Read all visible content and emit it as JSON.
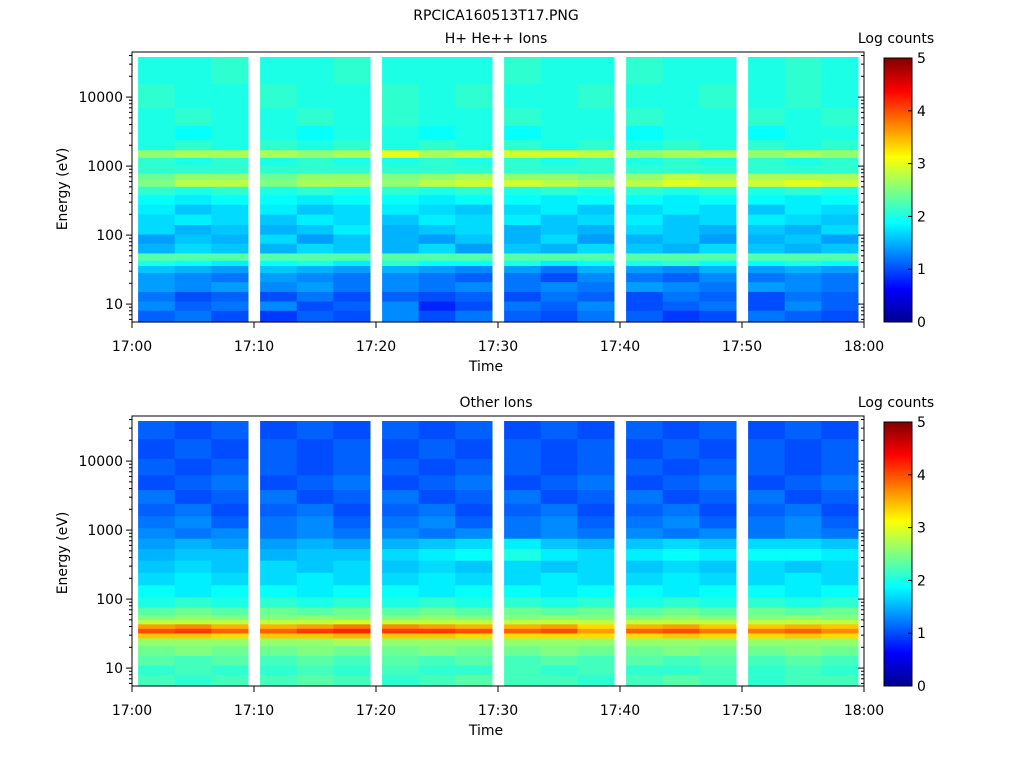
{
  "figure_title": "RPCICA160513T17.PNG",
  "colormap": [
    "#00008f",
    "#0000ff",
    "#0080ff",
    "#00ffff",
    "#80ff80",
    "#ffff00",
    "#ff8000",
    "#ff0000",
    "#800000"
  ],
  "chart_data": [
    {
      "type": "heatmap",
      "title": "H+ He++ Ions",
      "xlabel": "Time",
      "ylabel": "Energy (eV)",
      "x_ticks": [
        "17:00",
        "17:10",
        "17:20",
        "17:30",
        "17:40",
        "17:50",
        "18:00"
      ],
      "xlim": [
        "17:00",
        "18:00"
      ],
      "y_ticks": [
        10,
        100,
        1000,
        10000
      ],
      "y_tick_labels": [
        "10",
        "100",
        "1000",
        "10000"
      ],
      "ylim": [
        5.5,
        45000
      ],
      "y_scale": "log",
      "colorbar_label": "Log counts",
      "colorbar_ticks": [
        "0",
        "1",
        "2",
        "3",
        "4",
        "5"
      ],
      "colorbar_range": [
        0,
        5
      ],
      "time_columns": [
        "17:02",
        "17:05",
        "17:08",
        "17:12",
        "17:15",
        "17:18",
        "17:22",
        "17:25",
        "17:28",
        "17:32",
        "17:35",
        "17:38",
        "17:42",
        "17:45",
        "17:48",
        "17:52",
        "17:55",
        "17:58"
      ],
      "energy_bands_eV": [
        7,
        9.5,
        13,
        18,
        25,
        33,
        40,
        47,
        65,
        90,
        120,
        170,
        240,
        330,
        450,
        580,
        700,
        900,
        1200,
        1500,
        2000,
        3000,
        5000,
        10000,
        25000
      ],
      "log_counts_by_energy": [
        [
          1.1,
          1.2,
          1.0,
          0.9,
          1.1,
          1.0,
          1.3,
          1.0,
          1.2,
          1.1,
          1.0,
          1.2,
          1.1,
          0.9,
          1.0,
          1.2,
          1.1,
          1.0
        ],
        [
          1.3,
          1.1,
          1.2,
          1.3,
          1.0,
          1.1,
          1.3,
          0.8,
          1.0,
          1.2,
          1.1,
          1.3,
          1.0,
          1.1,
          1.2,
          1.0,
          1.3,
          1.1
        ],
        [
          1.2,
          1.0,
          1.1,
          1.0,
          1.2,
          1.0,
          1.1,
          1.0,
          1.1,
          1.0,
          1.2,
          1.1,
          1.0,
          1.2,
          1.1,
          1.0,
          1.2,
          1.1
        ],
        [
          1.4,
          1.3,
          1.4,
          1.3,
          1.4,
          1.2,
          1.3,
          1.2,
          1.3,
          1.2,
          1.3,
          1.2,
          1.4,
          1.3,
          1.2,
          1.4,
          1.3,
          1.2
        ],
        [
          1.4,
          1.3,
          1.2,
          1.4,
          1.3,
          1.2,
          1.3,
          1.2,
          1.1,
          1.2,
          1.0,
          1.3,
          1.2,
          1.1,
          1.3,
          1.2,
          1.3,
          1.2
        ],
        [
          1.6,
          1.5,
          1.4,
          1.6,
          1.5,
          1.4,
          1.5,
          1.4,
          1.3,
          1.4,
          1.2,
          1.5,
          1.4,
          1.3,
          1.5,
          1.4,
          1.5,
          1.4
        ],
        [
          2.0,
          1.9,
          1.8,
          1.9,
          2.0,
          1.8,
          2.1,
          1.9,
          1.9,
          2.0,
          1.8,
          1.9,
          2.0,
          2.1,
          1.9,
          1.9,
          2.0,
          1.9
        ],
        [
          2.3,
          2.3,
          2.3,
          2.3,
          2.3,
          2.3,
          2.3,
          2.3,
          2.3,
          2.3,
          2.3,
          2.3,
          2.3,
          2.3,
          2.3,
          2.3,
          2.3,
          2.3
        ],
        [
          1.5,
          1.7,
          1.6,
          1.5,
          1.7,
          1.6,
          1.5,
          1.7,
          1.4,
          1.6,
          1.5,
          1.7,
          1.6,
          1.5,
          1.7,
          1.6,
          1.5,
          1.6
        ],
        [
          1.4,
          1.6,
          1.5,
          1.7,
          1.4,
          1.6,
          1.5,
          1.4,
          1.6,
          1.5,
          1.7,
          1.4,
          1.5,
          1.6,
          1.4,
          1.5,
          1.6,
          1.4
        ],
        [
          1.7,
          1.5,
          1.6,
          1.5,
          1.6,
          1.8,
          1.5,
          1.6,
          1.7,
          1.5,
          1.6,
          1.5,
          1.7,
          1.6,
          1.5,
          1.6,
          1.5,
          1.7
        ],
        [
          1.7,
          1.8,
          1.7,
          1.6,
          1.8,
          1.7,
          1.6,
          1.8,
          1.7,
          1.8,
          1.6,
          1.7,
          1.8,
          1.6,
          1.7,
          1.8,
          1.7,
          1.6
        ],
        [
          1.8,
          1.6,
          1.7,
          1.8,
          1.6,
          1.7,
          1.8,
          1.7,
          1.6,
          1.7,
          1.8,
          1.6,
          1.7,
          1.8,
          1.7,
          1.6,
          1.8,
          1.7
        ],
        [
          1.9,
          1.8,
          1.9,
          1.9,
          1.8,
          1.9,
          1.9,
          1.8,
          1.9,
          1.9,
          1.8,
          1.9,
          1.9,
          1.8,
          1.9,
          1.9,
          1.8,
          1.9
        ],
        [
          2.1,
          2.0,
          2.1,
          2.0,
          2.1,
          2.0,
          2.1,
          2.0,
          2.1,
          2.0,
          2.1,
          2.0,
          2.1,
          2.0,
          2.1,
          2.0,
          2.1,
          2.0
        ],
        [
          2.5,
          2.8,
          2.8,
          2.5,
          2.7,
          2.7,
          2.6,
          2.8,
          2.9,
          2.9,
          2.8,
          2.7,
          2.8,
          3.0,
          2.9,
          2.9,
          3.0,
          2.9
        ],
        [
          2.4,
          2.6,
          2.6,
          2.4,
          2.6,
          2.6,
          2.5,
          2.6,
          2.7,
          2.6,
          2.6,
          2.5,
          2.6,
          2.8,
          2.7,
          2.7,
          2.7,
          2.7
        ],
        [
          2.1,
          2.1,
          2.1,
          2.1,
          2.1,
          2.1,
          2.1,
          2.1,
          2.1,
          2.1,
          2.1,
          2.1,
          2.1,
          2.1,
          2.1,
          2.1,
          2.1,
          2.1
        ],
        [
          2.1,
          2.0,
          2.1,
          2.0,
          2.1,
          2.0,
          2.0,
          2.1,
          2.0,
          2.1,
          2.0,
          2.1,
          2.0,
          2.1,
          2.0,
          2.1,
          2.0,
          2.1
        ],
        [
          2.6,
          2.7,
          2.7,
          2.7,
          2.6,
          2.7,
          3.0,
          2.7,
          2.8,
          2.9,
          2.9,
          2.8,
          2.6,
          2.7,
          2.7,
          2.6,
          2.7,
          2.6
        ],
        [
          2.0,
          2.1,
          2.0,
          2.1,
          2.0,
          2.1,
          2.0,
          2.1,
          2.0,
          2.1,
          2.0,
          2.1,
          2.0,
          2.1,
          2.0,
          2.1,
          2.0,
          2.1
        ],
        [
          2.0,
          1.9,
          2.0,
          2.0,
          1.9,
          2.0,
          2.0,
          1.9,
          2.0,
          1.9,
          2.0,
          2.0,
          1.9,
          2.0,
          2.0,
          1.9,
          2.0,
          2.0
        ],
        [
          2.0,
          2.1,
          2.0,
          2.0,
          2.1,
          2.0,
          2.1,
          2.0,
          2.0,
          2.1,
          2.0,
          2.0,
          2.1,
          2.0,
          2.0,
          2.1,
          2.0,
          2.1
        ],
        [
          2.1,
          2.0,
          2.0,
          2.1,
          2.0,
          2.0,
          2.1,
          2.0,
          2.1,
          2.0,
          2.0,
          2.1,
          2.0,
          2.0,
          2.1,
          2.0,
          2.1,
          2.0
        ],
        [
          2.0,
          2.0,
          2.1,
          2.0,
          2.0,
          2.1,
          2.0,
          2.0,
          2.0,
          2.1,
          2.0,
          2.0,
          2.1,
          2.0,
          2.0,
          2.0,
          2.1,
          2.0
        ]
      ]
    },
    {
      "type": "heatmap",
      "title": "Other Ions",
      "xlabel": "Time",
      "ylabel": "Energy (eV)",
      "x_ticks": [
        "17:00",
        "17:10",
        "17:20",
        "17:30",
        "17:40",
        "17:50",
        "18:00"
      ],
      "xlim": [
        "17:00",
        "18:00"
      ],
      "y_ticks": [
        10,
        100,
        1000,
        10000
      ],
      "y_tick_labels": [
        "10",
        "100",
        "1000",
        "10000"
      ],
      "ylim": [
        5.5,
        45000
      ],
      "y_scale": "log",
      "colorbar_label": "Log counts",
      "colorbar_ticks": [
        "0",
        "1",
        "2",
        "3",
        "4",
        "5"
      ],
      "colorbar_range": [
        0,
        5
      ],
      "time_columns": [
        "17:02",
        "17:05",
        "17:08",
        "17:12",
        "17:15",
        "17:18",
        "17:22",
        "17:25",
        "17:28",
        "17:32",
        "17:35",
        "17:38",
        "17:42",
        "17:45",
        "17:48",
        "17:52",
        "17:55",
        "17:58"
      ],
      "energy_bands_eV": [
        7,
        9.5,
        13,
        18,
        25,
        30,
        35,
        41,
        47,
        55,
        65,
        90,
        130,
        200,
        300,
        450,
        650,
        900,
        1300,
        2000,
        3000,
        5000,
        8000,
        15000,
        30000
      ],
      "log_counts_by_energy": [
        [
          2.2,
          2.1,
          2.2,
          2.2,
          2.3,
          2.2,
          2.1,
          2.2,
          2.3,
          2.2,
          2.2,
          2.1,
          2.2,
          2.3,
          2.2,
          2.1,
          2.2,
          2.2
        ],
        [
          2.1,
          2.2,
          2.1,
          2.1,
          2.2,
          2.1,
          2.2,
          2.1,
          2.1,
          2.2,
          2.1,
          2.2,
          2.1,
          2.1,
          2.2,
          2.1,
          2.2,
          2.1
        ],
        [
          2.3,
          2.2,
          2.3,
          2.2,
          2.3,
          2.2,
          2.3,
          2.2,
          2.3,
          2.2,
          2.3,
          2.2,
          2.3,
          2.2,
          2.3,
          2.2,
          2.3,
          2.2
        ],
        [
          2.4,
          2.5,
          2.4,
          2.4,
          2.5,
          2.4,
          2.4,
          2.5,
          2.4,
          2.4,
          2.5,
          2.4,
          2.4,
          2.5,
          2.4,
          2.4,
          2.5,
          2.4
        ],
        [
          2.6,
          2.6,
          2.6,
          2.6,
          2.6,
          2.7,
          2.6,
          2.6,
          2.6,
          2.6,
          2.6,
          2.6,
          2.6,
          2.6,
          2.6,
          2.6,
          2.6,
          2.6
        ],
        [
          3.4,
          3.4,
          3.3,
          3.4,
          3.4,
          3.5,
          3.4,
          3.4,
          3.3,
          3.3,
          3.3,
          3.3,
          3.3,
          3.4,
          3.3,
          3.3,
          3.4,
          3.3
        ],
        [
          4.0,
          4.1,
          3.9,
          3.9,
          4.1,
          4.2,
          4.1,
          4.1,
          4.0,
          3.9,
          4.0,
          3.6,
          3.9,
          4.0,
          3.8,
          3.8,
          3.9,
          3.7
        ],
        [
          3.6,
          3.7,
          3.5,
          3.5,
          3.6,
          3.8,
          3.7,
          3.6,
          3.5,
          3.5,
          3.6,
          3.3,
          3.5,
          3.6,
          3.4,
          3.4,
          3.5,
          3.4
        ],
        [
          2.8,
          2.8,
          2.8,
          2.8,
          2.8,
          2.9,
          2.8,
          2.8,
          2.8,
          2.8,
          2.8,
          2.8,
          2.8,
          2.8,
          2.8,
          2.8,
          2.8,
          2.8
        ],
        [
          2.5,
          2.6,
          2.5,
          2.5,
          2.6,
          2.5,
          2.5,
          2.6,
          2.5,
          2.5,
          2.6,
          2.5,
          2.5,
          2.6,
          2.5,
          2.5,
          2.6,
          2.5
        ],
        [
          2.3,
          2.4,
          2.3,
          2.4,
          2.3,
          2.4,
          2.3,
          2.4,
          2.3,
          2.4,
          2.3,
          2.4,
          2.3,
          2.4,
          2.3,
          2.4,
          2.3,
          2.4
        ],
        [
          2.0,
          2.1,
          2.0,
          2.1,
          2.0,
          2.1,
          2.0,
          2.1,
          2.0,
          2.1,
          2.0,
          2.1,
          2.0,
          2.1,
          2.0,
          2.1,
          2.0,
          2.1
        ],
        [
          1.9,
          1.8,
          1.9,
          1.9,
          1.8,
          1.9,
          1.9,
          1.8,
          1.9,
          1.9,
          1.8,
          1.9,
          1.9,
          1.8,
          1.9,
          1.9,
          1.8,
          1.9
        ],
        [
          1.7,
          1.8,
          1.7,
          1.7,
          1.8,
          1.7,
          1.7,
          1.8,
          1.7,
          1.7,
          1.8,
          1.7,
          1.7,
          1.8,
          1.7,
          1.7,
          1.8,
          1.7
        ],
        [
          1.6,
          1.7,
          1.6,
          1.7,
          1.6,
          1.7,
          1.6,
          1.7,
          1.6,
          1.7,
          1.6,
          1.7,
          1.6,
          1.7,
          1.6,
          1.7,
          1.6,
          1.7
        ],
        [
          1.5,
          1.6,
          1.6,
          1.5,
          1.6,
          1.6,
          1.7,
          1.8,
          1.9,
          2.0,
          1.8,
          1.7,
          1.8,
          1.9,
          1.8,
          1.9,
          1.9,
          1.8
        ],
        [
          1.4,
          1.5,
          1.4,
          1.4,
          1.5,
          1.4,
          1.5,
          1.6,
          1.7,
          1.8,
          1.6,
          1.5,
          1.6,
          1.7,
          1.6,
          1.7,
          1.7,
          1.6
        ],
        [
          1.3,
          1.2,
          1.3,
          1.2,
          1.3,
          1.2,
          1.3,
          1.2,
          1.3,
          1.2,
          1.3,
          1.2,
          1.3,
          1.2,
          1.3,
          1.2,
          1.3,
          1.2
        ],
        [
          1.2,
          1.3,
          1.1,
          1.2,
          1.3,
          1.1,
          1.2,
          1.3,
          1.1,
          1.2,
          1.3,
          1.1,
          1.2,
          1.3,
          1.1,
          1.2,
          1.3,
          1.1
        ],
        [
          1.1,
          1.2,
          1.0,
          1.1,
          1.2,
          1.0,
          1.1,
          1.2,
          1.0,
          1.1,
          1.2,
          1.0,
          1.1,
          1.2,
          1.0,
          1.1,
          1.2,
          1.0
        ],
        [
          1.2,
          1.0,
          1.1,
          1.2,
          1.0,
          1.1,
          1.2,
          1.0,
          1.1,
          1.2,
          1.0,
          1.1,
          1.2,
          1.0,
          1.1,
          1.2,
          1.0,
          1.1
        ],
        [
          1.0,
          1.1,
          1.2,
          1.0,
          1.1,
          1.2,
          1.0,
          1.1,
          1.2,
          1.0,
          1.1,
          1.2,
          1.0,
          1.1,
          1.2,
          1.0,
          1.1,
          1.2
        ],
        [
          1.1,
          1.0,
          1.1,
          1.1,
          1.0,
          1.1,
          1.1,
          1.0,
          1.1,
          1.1,
          1.0,
          1.1,
          1.1,
          1.0,
          1.1,
          1.1,
          1.0,
          1.1
        ],
        [
          1.0,
          1.1,
          1.0,
          1.1,
          1.0,
          1.1,
          1.0,
          1.1,
          1.0,
          1.1,
          1.0,
          1.1,
          1.0,
          1.1,
          1.0,
          1.1,
          1.0,
          1.1
        ],
        [
          1.1,
          1.0,
          1.1,
          1.0,
          1.1,
          1.0,
          1.1,
          1.0,
          1.1,
          1.0,
          1.1,
          1.0,
          1.1,
          1.0,
          1.1,
          1.0,
          1.1,
          1.0
        ]
      ]
    }
  ]
}
